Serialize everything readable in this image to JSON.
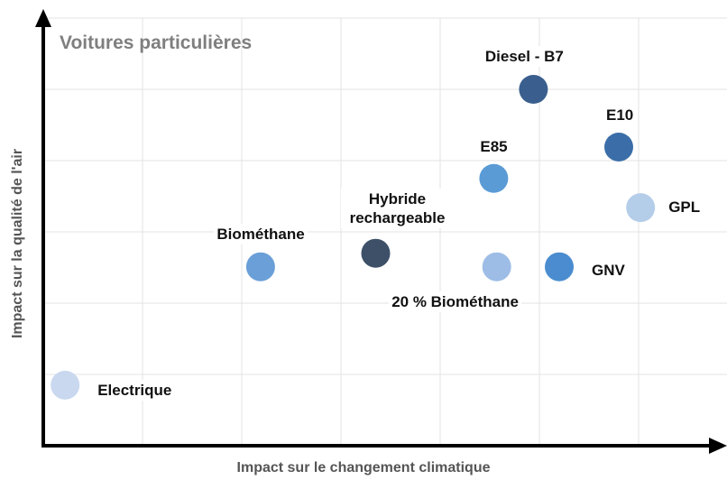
{
  "chart_data": {
    "type": "scatter",
    "title": "Voitures particulières",
    "x_label": "Impact sur le changement climatique",
    "y_label": "Impact sur la qualité de l'air",
    "xlim": [
      0,
      6.9
    ],
    "ylim": [
      0,
      6
    ],
    "grid": true,
    "series": [
      {
        "name": "Electrique",
        "color": "#c9d8ef",
        "x": [
          0.22
        ],
        "values": [
          0.85
        ]
      },
      {
        "name": "Biométhane",
        "color": "#6a9fd8",
        "x": [
          2.19
        ],
        "values": [
          2.51
        ]
      },
      {
        "name": "Hybride rechargeable",
        "color": "#3d5068",
        "x": [
          3.35
        ],
        "values": [
          2.7
        ]
      },
      {
        "name": "E85",
        "color": "#5b9bd5",
        "x": [
          4.54
        ],
        "values": [
          3.75
        ]
      },
      {
        "name": "20 % Biométhane",
        "color": "#9dbde6",
        "x": [
          4.57
        ],
        "values": [
          2.51
        ]
      },
      {
        "name": "GNV",
        "color": "#4a8ccf",
        "x": [
          5.2
        ],
        "values": [
          2.51
        ]
      },
      {
        "name": "Diesel - B7",
        "color": "#3a5f8e",
        "x": [
          4.94
        ],
        "values": [
          5.0
        ]
      },
      {
        "name": "E10",
        "color": "#3b6ea8",
        "x": [
          5.8
        ],
        "values": [
          4.19
        ]
      },
      {
        "name": "GPL",
        "color": "#b4cde9",
        "x": [
          6.02
        ],
        "values": [
          3.34
        ]
      }
    ]
  }
}
